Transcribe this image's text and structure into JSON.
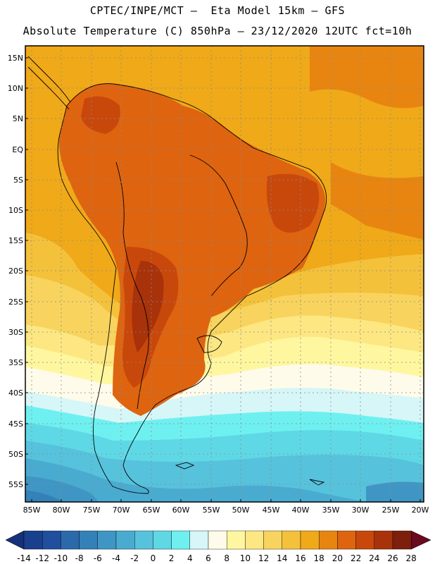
{
  "header": {
    "line1": "CPTEC/INPE/MCT –  Eta Model 15km – GFS",
    "line2": "Absolute Temperature (C) 850hPa – 23/12/2020 12UTC fct=10h"
  },
  "axes": {
    "lat_labels": [
      "15N",
      "10N",
      "5N",
      "EQ",
      "5S",
      "10S",
      "15S",
      "20S",
      "25S",
      "30S",
      "35S",
      "40S",
      "45S",
      "50S",
      "55S"
    ],
    "lon_labels": [
      "85W",
      "80W",
      "75W",
      "70W",
      "65W",
      "60W",
      "55W",
      "50W",
      "45W",
      "40W",
      "35W",
      "30W",
      "25W",
      "20W"
    ]
  },
  "colorbar": {
    "labels": [
      "-14",
      "-12",
      "-10",
      "-8",
      "-6",
      "-4",
      "-2",
      "0",
      "2",
      "4",
      "6",
      "8",
      "10",
      "12",
      "14",
      "16",
      "18",
      "20",
      "22",
      "24",
      "26",
      "28"
    ],
    "colors": [
      "#1a3f8c",
      "#1f4f9e",
      "#2a6aab",
      "#3480b8",
      "#3f96c4",
      "#4aabd0",
      "#57c2dc",
      "#5fd8e6",
      "#6ff0f0",
      "#d6f6f8",
      "#fefbea",
      "#fef7a0",
      "#fde782",
      "#f8d45e",
      "#f4c13a",
      "#f0a918",
      "#e88510",
      "#de6410",
      "#c8480c",
      "#a8320a",
      "#7e1e0c"
    ],
    "under_color": "#16307a",
    "over_color": "#6a0a1e"
  },
  "map_colors": {
    "ocean_north": "#f0a918",
    "ocean_warm": "#e88510",
    "land_hot": "#de6410",
    "land_very_hot": "#c8480c",
    "land_extreme": "#a8320a",
    "band_16": "#f4c13a",
    "band_14": "#f8d45e",
    "band_12": "#fde782",
    "band_10": "#fef7a0",
    "band_8": "#fefbea",
    "band_6": "#d6f6f8",
    "band_4": "#6ff0f0",
    "band_2": "#5fd8e6",
    "band_0": "#57c2dc",
    "band_m2": "#4aabd0",
    "band_m4": "#3f96c4",
    "band_m6": "#3480b8"
  }
}
